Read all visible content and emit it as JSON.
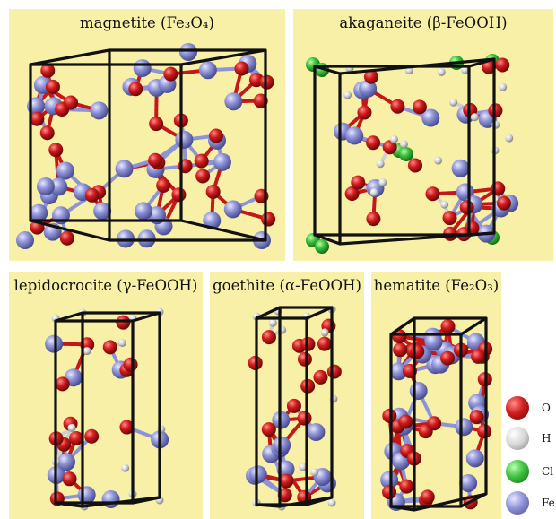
{
  "panels": [
    {
      "id": "magnetite",
      "name": "magnetite",
      "formula": "Fe₃O₄"
    },
    {
      "id": "akaganeite",
      "name": "akaganeite",
      "formula": "β-FeOOH"
    },
    {
      "id": "lepidocrocite",
      "name": "lepidocrocite",
      "formula": "γ-FeOOH"
    },
    {
      "id": "goethite",
      "name": "goethite",
      "formula": "α-FeOOH"
    },
    {
      "id": "hematite",
      "name": "hematite",
      "formula": "Fe₂O₃"
    }
  ],
  "legend": [
    {
      "label": "O",
      "color": "#cc1a1a"
    },
    {
      "label": "H",
      "color": "#d8d8d8"
    },
    {
      "label": "Cl",
      "color": "#3ec23e"
    },
    {
      "label": "Fe",
      "color": "#8e92d6"
    }
  ],
  "colors": {
    "panel_bg": "#f7f0a6",
    "oxygen": "#cc1a1a",
    "hydrogen": "#d8d8d8",
    "chlorine": "#3ec23e",
    "iron": "#8e92d6",
    "cell_edge": "#111111"
  }
}
